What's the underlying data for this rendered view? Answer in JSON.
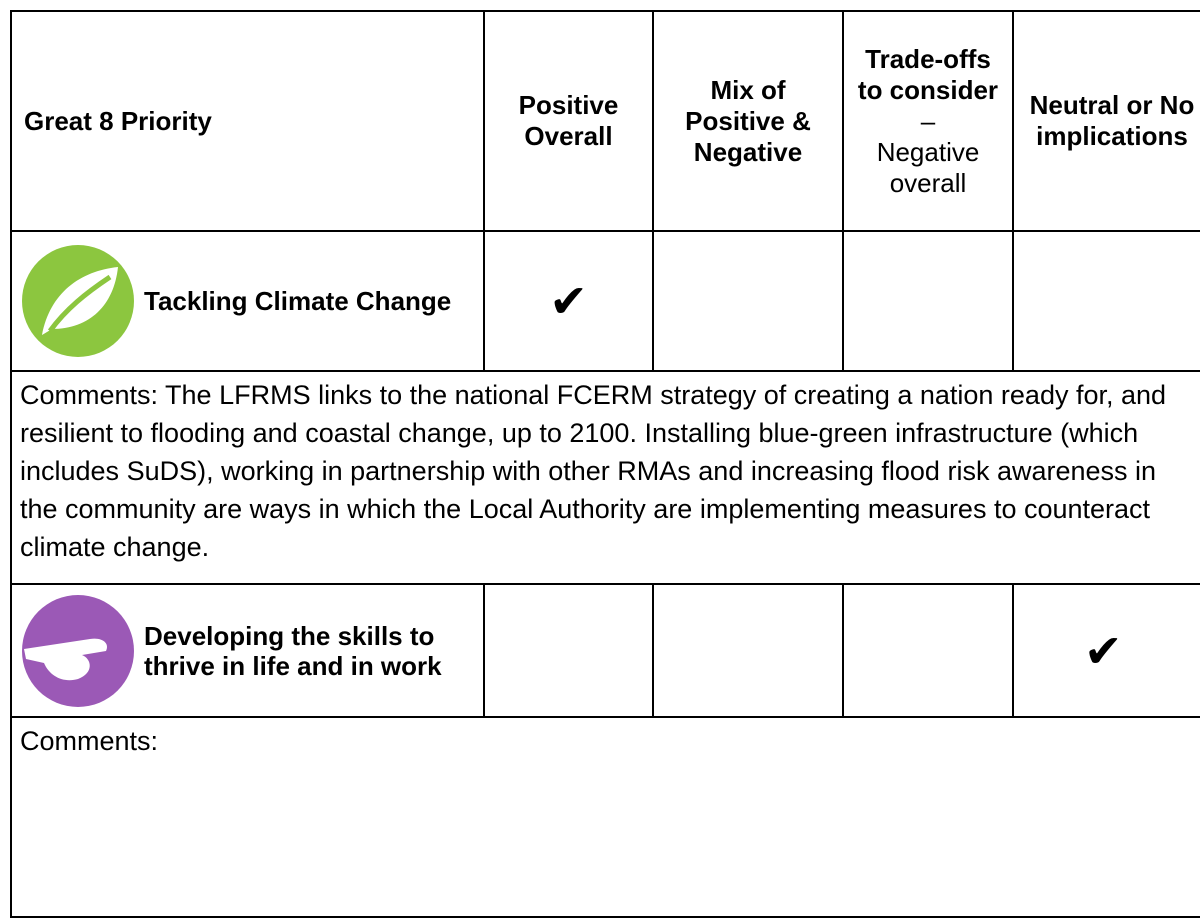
{
  "table": {
    "header": {
      "priority": "Great 8 Priority",
      "columns": [
        {
          "text": "Positive Overall"
        },
        {
          "text": "Mix of Positive & Negative"
        },
        {
          "text": "Trade-offs to consider",
          "dash": "–",
          "note": "Negative overall"
        },
        {
          "text": "Neutral or No implications"
        }
      ]
    },
    "rows": [
      {
        "priority": "Tackling Climate Change",
        "cells": [
          "✔",
          null,
          null,
          null
        ],
        "comments": "Comments: The LFRMS links to the national FCERM strategy of creating a nation ready for, and resilient to flooding and coastal change, up to 2100. Installing blue-green infrastructure (which includes SuDS), working in partnership with other RMAs and increasing flood risk awareness in the community are ways in which the Local Authority are implementing measures to counteract climate change."
      },
      {
        "priority": "Developing the skills to thrive in life and in work",
        "cells": [
          null,
          null,
          null,
          "✔"
        ],
        "comments": "Comments:"
      }
    ]
  }
}
